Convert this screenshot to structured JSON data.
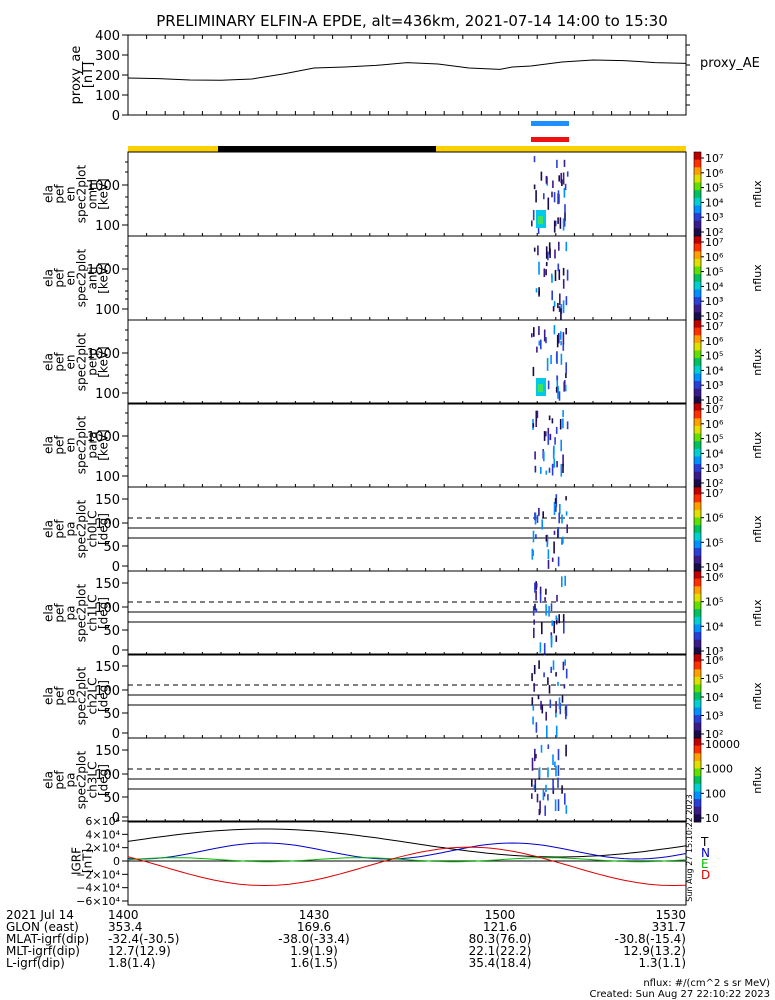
{
  "header": {
    "title": "PRELIMINARY ELFIN-A EPDE, alt=436km, 2021-07-14 14:00 to 15:30"
  },
  "chart_data": [
    {
      "type": "line",
      "panel": "proxy_ae",
      "ylabel": "proxy_ae\n[nT]",
      "legend": "proxy_AE",
      "ylim": [
        0,
        400
      ],
      "yticks": [
        "400",
        "300",
        "200",
        "100",
        "0"
      ],
      "x": [
        0,
        5,
        10,
        15,
        20,
        25,
        30,
        35,
        40,
        45,
        50,
        55,
        60,
        62,
        65,
        70,
        75,
        80,
        85,
        90
      ],
      "values": [
        185,
        182,
        175,
        174,
        180,
        205,
        235,
        240,
        248,
        262,
        255,
        235,
        228,
        240,
        245,
        265,
        275,
        272,
        262,
        258
      ]
    },
    {
      "type": "heatmap",
      "panels": [
        {
          "ylabel": "ela\npef\nen\nspec2plot\nomni\n[keV]",
          "yticks": [
            "1000",
            "100"
          ]
        },
        {
          "ylabel": "ela\npef\nen\nspec2plot\nanti\n[keV]",
          "yticks": [
            "1000",
            "100"
          ]
        },
        {
          "ylabel": "ela\npef\nen\nspec2plot\nperp\n[keV]",
          "yticks": [
            "1000",
            "100"
          ]
        },
        {
          "ylabel": "ela\npef\nen\nspec2plot\npara\n[keV]",
          "yticks": [
            "1000",
            "100"
          ]
        },
        {
          "ylabel": "ela\npef\npa\nspec2plot\nch0LC\n[deg]",
          "yticks": [
            "150",
            "100",
            "50",
            "0"
          ]
        },
        {
          "ylabel": "ela\npef\npa\nspec2plot\nch1LC\n[deg]",
          "yticks": [
            "150",
            "100",
            "50",
            "0"
          ]
        },
        {
          "ylabel": "ela\npef\npa\nspec2plot\nch2LC\n[deg]",
          "yticks": [
            "150",
            "100",
            "50",
            "0"
          ]
        },
        {
          "ylabel": "ela\npef\npa\nspec2plot\nch3LC\n[deg]",
          "yticks": [
            "150",
            "100",
            "50",
            "0"
          ]
        }
      ],
      "colorbar_label": "nflux"
    },
    {
      "type": "line",
      "panel": "IGRF",
      "ylabel": "IGRF\n[nT]",
      "yticks": [
        "6×10⁴",
        "4×10⁴",
        "2×10⁴",
        "0",
        "−2×10⁴",
        "−4×10⁴",
        "−6×10⁴"
      ],
      "ylim": [
        -60000,
        60000
      ],
      "legend": [
        "T",
        "N",
        "E",
        "D"
      ],
      "colors": [
        "#000000",
        "#0000cc",
        "#00bb00",
        "#dd0000"
      ]
    }
  ],
  "colorbars": [
    {
      "labels": [
        "10⁷",
        "10⁶",
        "10⁵",
        "10⁴",
        "10³",
        "10²"
      ],
      "name": "nflux"
    },
    {
      "labels": [
        "10⁷",
        "10⁶",
        "10⁵",
        "10⁴",
        "10³",
        "10²"
      ],
      "name": "nflux"
    },
    {
      "labels": [
        "10⁷",
        "10⁶",
        "10⁵",
        "10⁴",
        "10³",
        "10²"
      ],
      "name": "nflux"
    },
    {
      "labels": [
        "10⁷",
        "10⁶",
        "10⁵",
        "10⁴",
        "10³",
        "10²"
      ],
      "name": "nflux"
    },
    {
      "labels": [
        "10⁷",
        "10⁶",
        "10⁵",
        "10⁴"
      ],
      "name": "nflux"
    },
    {
      "labels": [
        "10⁶",
        "10⁵",
        "10⁴",
        "10³"
      ],
      "name": "nflux"
    },
    {
      "labels": [
        "10⁶",
        "10⁵",
        "10⁴",
        "10³",
        "10²"
      ],
      "name": "nflux"
    },
    {
      "labels": [
        "10000",
        "1000",
        "100",
        "10"
      ],
      "name": "nflux"
    }
  ],
  "footer": {
    "rows": [
      {
        "label": "2021 Jul 14",
        "values": [
          "1400",
          "1430",
          "1500",
          "1530"
        ]
      },
      {
        "label": "GLON (east)",
        "values": [
          "353.4",
          "169.6",
          "121.6",
          "331.7"
        ]
      },
      {
        "label": "MLAT-igrf(dip)",
        "values": [
          "-32.4(-30.5)",
          "-38.0(-33.4)",
          "80.3(76.0)",
          "-30.8(-15.4)"
        ]
      },
      {
        "label": "MLT-igrf(dip)",
        "values": [
          "12.7(12.9)",
          "1.9(1.9)",
          "22.1(22.2)",
          "12.9(13.2)"
        ]
      },
      {
        "label": "L-igrf(dip)",
        "values": [
          "1.8(1.4)",
          "1.6(1.5)",
          "35.4(18.4)",
          "1.3(1.1)"
        ]
      }
    ],
    "units": "nflux: #/(cm^2 s sr MeV)",
    "created": "Created: Sun Aug 27 22:10:22 2023",
    "side_stamp": "Sun Aug 27 15:10:22 2023"
  }
}
